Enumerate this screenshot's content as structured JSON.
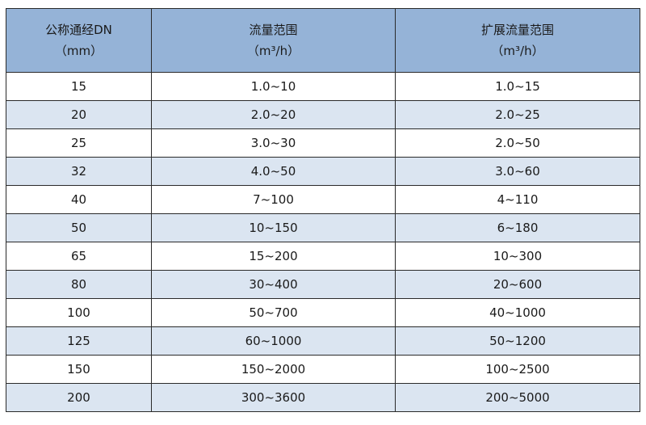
{
  "table": {
    "headers": [
      {
        "title": "公称通经DN",
        "unit": "（mm）"
      },
      {
        "title": "流量范围",
        "unit": "（m³/h）"
      },
      {
        "title": "扩展流量范围",
        "unit": "（m³/h）"
      }
    ],
    "rows": [
      [
        "15",
        "1.0~10",
        "1.0~15"
      ],
      [
        "20",
        "2.0~20",
        "2.0~25"
      ],
      [
        "25",
        "3.0~30",
        "2.0~50"
      ],
      [
        "32",
        "4.0~50",
        "3.0~60"
      ],
      [
        "40",
        "7~100",
        "4~110"
      ],
      [
        "50",
        "10~150",
        "6~180"
      ],
      [
        "65",
        "15~200",
        "10~300"
      ],
      [
        "80",
        "30~400",
        "20~600"
      ],
      [
        "100",
        "50~700",
        "40~1000"
      ],
      [
        "125",
        "60~1000",
        "50~1200"
      ],
      [
        "150",
        "150~2000",
        "100~2500"
      ],
      [
        "200",
        "300~3600",
        "200~5000"
      ]
    ],
    "colors": {
      "header_bg": "#95b3d7",
      "alt_row_bg": "#dbe5f1",
      "border": "#2a2a2a"
    }
  }
}
